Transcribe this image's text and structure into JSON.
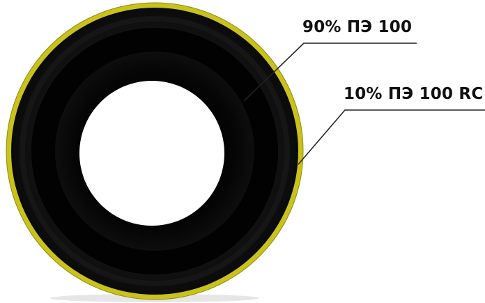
{
  "labels": {
    "inner_layer": "90% ПЭ 100",
    "outer_layer": "10% ПЭ 100 RC"
  },
  "colors": {
    "pipe_body": "#0a0a0a",
    "outer_layer": "#c9c21a",
    "bore": "#ffffff",
    "leader_line": "#222222"
  }
}
